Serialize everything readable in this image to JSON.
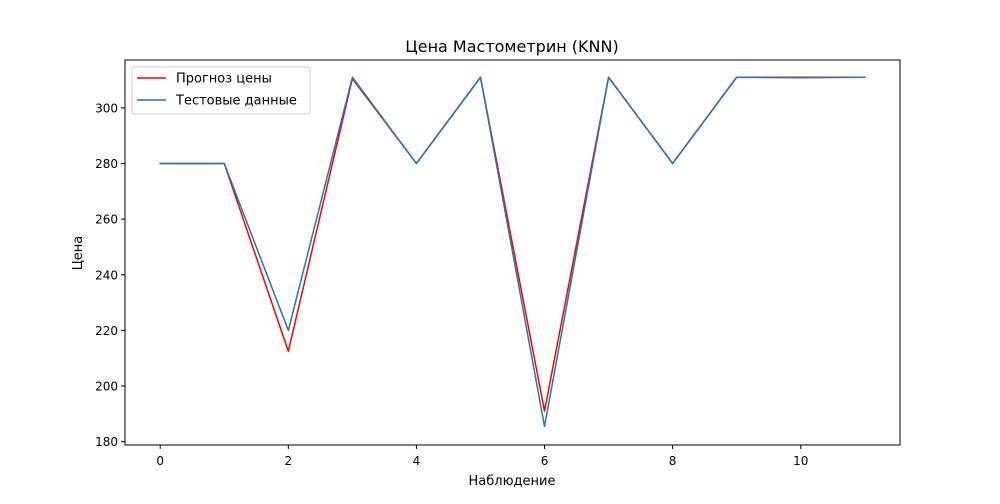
{
  "chart_data": {
    "type": "line",
    "title": "Цена Мастометрин  (KNN)",
    "xlabel": "Наблюдение",
    "ylabel": "Цена",
    "x": [
      0,
      1,
      2,
      3,
      4,
      5,
      6,
      7,
      8,
      9,
      10,
      11
    ],
    "xlim": [
      -0.55,
      11.55
    ],
    "ylim": [
      178.8,
      317.2
    ],
    "xticks": [
      0,
      2,
      4,
      6,
      8,
      10
    ],
    "yticks": [
      180,
      200,
      220,
      240,
      260,
      280,
      300
    ],
    "grid": false,
    "legend_position": "upper left",
    "series": [
      {
        "name": "Прогноз цены",
        "color": "#ff0000",
        "values": [
          280,
          280,
          212.5,
          310.5,
          280,
          311,
          191,
          311,
          280,
          311,
          311,
          311
        ]
      },
      {
        "name": "Тестовые данные",
        "color": "#1f77b4",
        "values": [
          280,
          280,
          220,
          311,
          280,
          311,
          185.5,
          311,
          280,
          311,
          310.8,
          311
        ]
      }
    ]
  }
}
